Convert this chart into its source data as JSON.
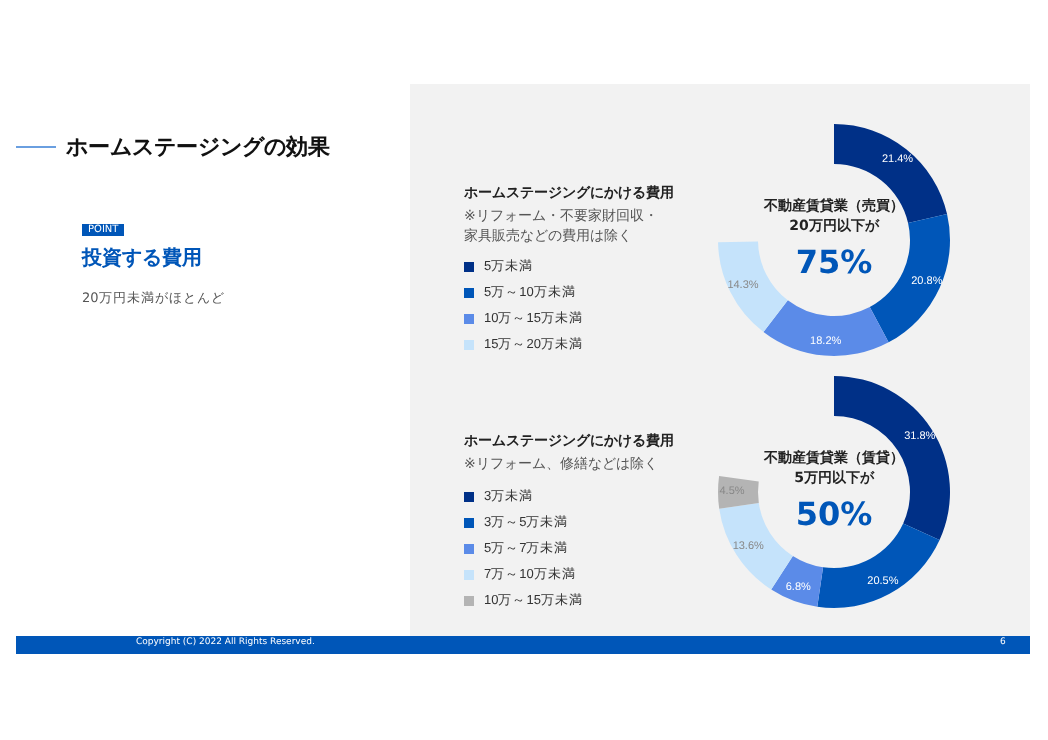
{
  "chart_data": [
    {
      "type": "donut",
      "title": "ホームステージングにかける費用",
      "subtitle": "※リフォーム・不要家財回収・家具販売などの費用は除く",
      "categories": [
        "5万未満",
        "5万～10万未満",
        "10万～15万未満",
        "15万～20万未満"
      ],
      "values": [
        21.4,
        20.8,
        18.2,
        14.3
      ],
      "value_labels": [
        "21.4%",
        "20.8%",
        "18.2%",
        "14.3%"
      ],
      "colors": [
        "#003087",
        "#0056b8",
        "#5b8be8",
        "#c5e3fb"
      ],
      "legend": "left",
      "annotations": [
        "不動産賃貸業（売買）",
        "20万円以下が",
        "75%",
        "ホームステージングの効果",
        "POINT",
        "投資する費用",
        "20万円未満がほとんど"
      ]
    },
    {
      "type": "donut",
      "title": "ホームステージングにかける費用",
      "subtitle": "※リフォーム、修繕などは除く",
      "categories": [
        "3万未満",
        "3万～5万未満",
        "5万～7万未満",
        "7万～10万未満",
        "10万～15万未満"
      ],
      "values": [
        31.8,
        20.5,
        6.8,
        13.6,
        4.5
      ],
      "value_labels": [
        "31.8%",
        "20.5%",
        "6.8%",
        "13.6%",
        "4.5%"
      ],
      "colors": [
        "#003087",
        "#0056b8",
        "#5b8be8",
        "#c5e3fb",
        "#b4b4b4"
      ],
      "legend": "left",
      "annotations": [
        "不動産賃貸業（賃貸）",
        "5万円以下が",
        "50%",
        "Copyright (C) 2022 All Rights Reserved.",
        "6"
      ]
    }
  ]
}
